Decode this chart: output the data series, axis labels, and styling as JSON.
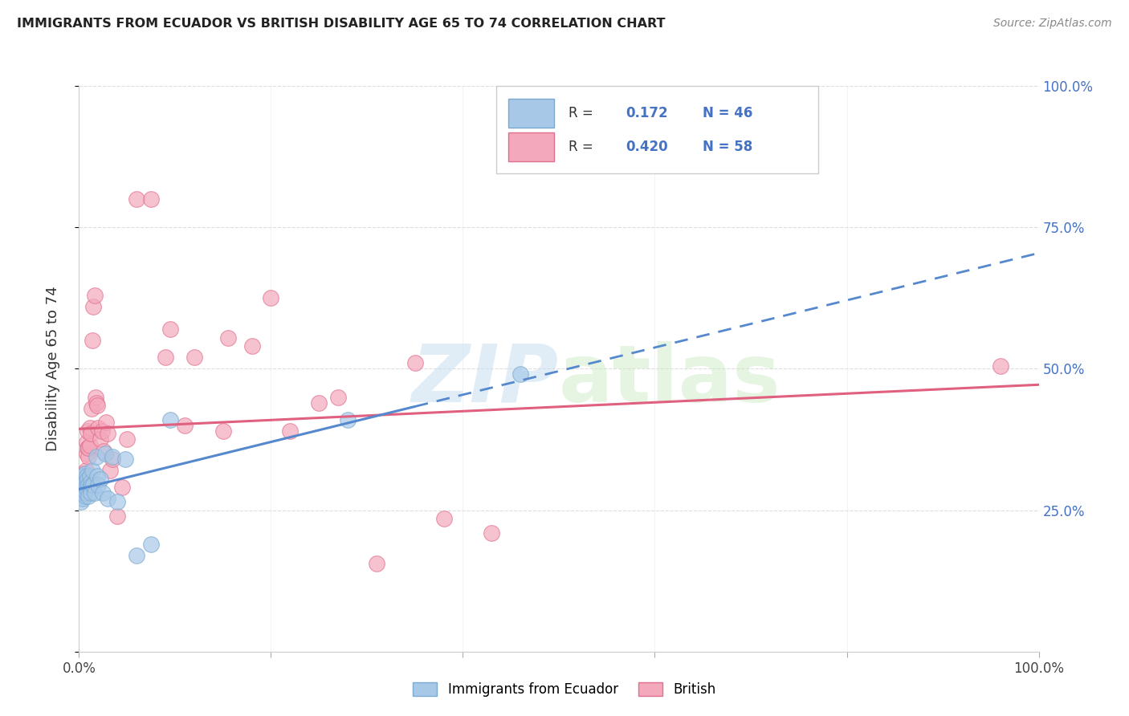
{
  "title": "IMMIGRANTS FROM ECUADOR VS BRITISH DISABILITY AGE 65 TO 74 CORRELATION CHART",
  "source": "Source: ZipAtlas.com",
  "ylabel": "Disability Age 65 to 74",
  "legend_label_1": "Immigrants from Ecuador",
  "legend_label_2": "British",
  "R1": 0.172,
  "N1": 46,
  "R2": 0.42,
  "N2": 58,
  "scatter_color1": "#A8C8E8",
  "scatter_color2": "#F4A8BB",
  "edge_color1": "#7AAAD0",
  "edge_color2": "#E07090",
  "line_color1": "#5588CC",
  "line_color2": "#E06080",
  "legend_color1": "#A8C8E8",
  "legend_color2": "#F4A8BB",
  "text_color_blue": "#4472C4",
  "xlim": [
    0.0,
    1.0
  ],
  "ylim": [
    0.0,
    1.0
  ],
  "ecuador_x": [
    0.001,
    0.002,
    0.002,
    0.003,
    0.003,
    0.004,
    0.004,
    0.004,
    0.005,
    0.005,
    0.005,
    0.006,
    0.006,
    0.006,
    0.007,
    0.007,
    0.007,
    0.008,
    0.008,
    0.009,
    0.009,
    0.01,
    0.01,
    0.011,
    0.011,
    0.012,
    0.012,
    0.013,
    0.014,
    0.015,
    0.016,
    0.018,
    0.019,
    0.02,
    0.022,
    0.025,
    0.027,
    0.03,
    0.035,
    0.04,
    0.048,
    0.06,
    0.075,
    0.095,
    0.28,
    0.46
  ],
  "ecuador_y": [
    0.28,
    0.295,
    0.265,
    0.3,
    0.28,
    0.31,
    0.285,
    0.27,
    0.295,
    0.305,
    0.28,
    0.315,
    0.295,
    0.275,
    0.3,
    0.29,
    0.28,
    0.31,
    0.295,
    0.305,
    0.285,
    0.295,
    0.275,
    0.31,
    0.29,
    0.3,
    0.28,
    0.295,
    0.32,
    0.295,
    0.28,
    0.345,
    0.31,
    0.295,
    0.305,
    0.28,
    0.35,
    0.27,
    0.345,
    0.265,
    0.34,
    0.17,
    0.19,
    0.41,
    0.41,
    0.49
  ],
  "british_x": [
    0.001,
    0.002,
    0.002,
    0.003,
    0.003,
    0.004,
    0.004,
    0.005,
    0.005,
    0.006,
    0.006,
    0.007,
    0.007,
    0.008,
    0.008,
    0.009,
    0.009,
    0.01,
    0.01,
    0.011,
    0.011,
    0.012,
    0.013,
    0.014,
    0.015,
    0.016,
    0.017,
    0.018,
    0.019,
    0.02,
    0.022,
    0.024,
    0.026,
    0.028,
    0.03,
    0.032,
    0.035,
    0.04,
    0.045,
    0.05,
    0.06,
    0.075,
    0.095,
    0.12,
    0.155,
    0.2,
    0.25,
    0.31,
    0.38,
    0.43,
    0.09,
    0.11,
    0.15,
    0.18,
    0.22,
    0.27,
    0.35,
    0.96
  ],
  "british_y": [
    0.295,
    0.28,
    0.31,
    0.3,
    0.29,
    0.315,
    0.285,
    0.31,
    0.29,
    0.305,
    0.28,
    0.32,
    0.295,
    0.35,
    0.37,
    0.39,
    0.36,
    0.345,
    0.36,
    0.395,
    0.365,
    0.385,
    0.43,
    0.55,
    0.61,
    0.63,
    0.45,
    0.44,
    0.435,
    0.395,
    0.375,
    0.39,
    0.355,
    0.405,
    0.385,
    0.32,
    0.34,
    0.24,
    0.29,
    0.375,
    0.8,
    0.8,
    0.57,
    0.52,
    0.555,
    0.625,
    0.44,
    0.155,
    0.235,
    0.21,
    0.52,
    0.4,
    0.39,
    0.54,
    0.39,
    0.45,
    0.51,
    0.505
  ],
  "figsize": [
    14.06,
    8.92
  ],
  "dpi": 100
}
